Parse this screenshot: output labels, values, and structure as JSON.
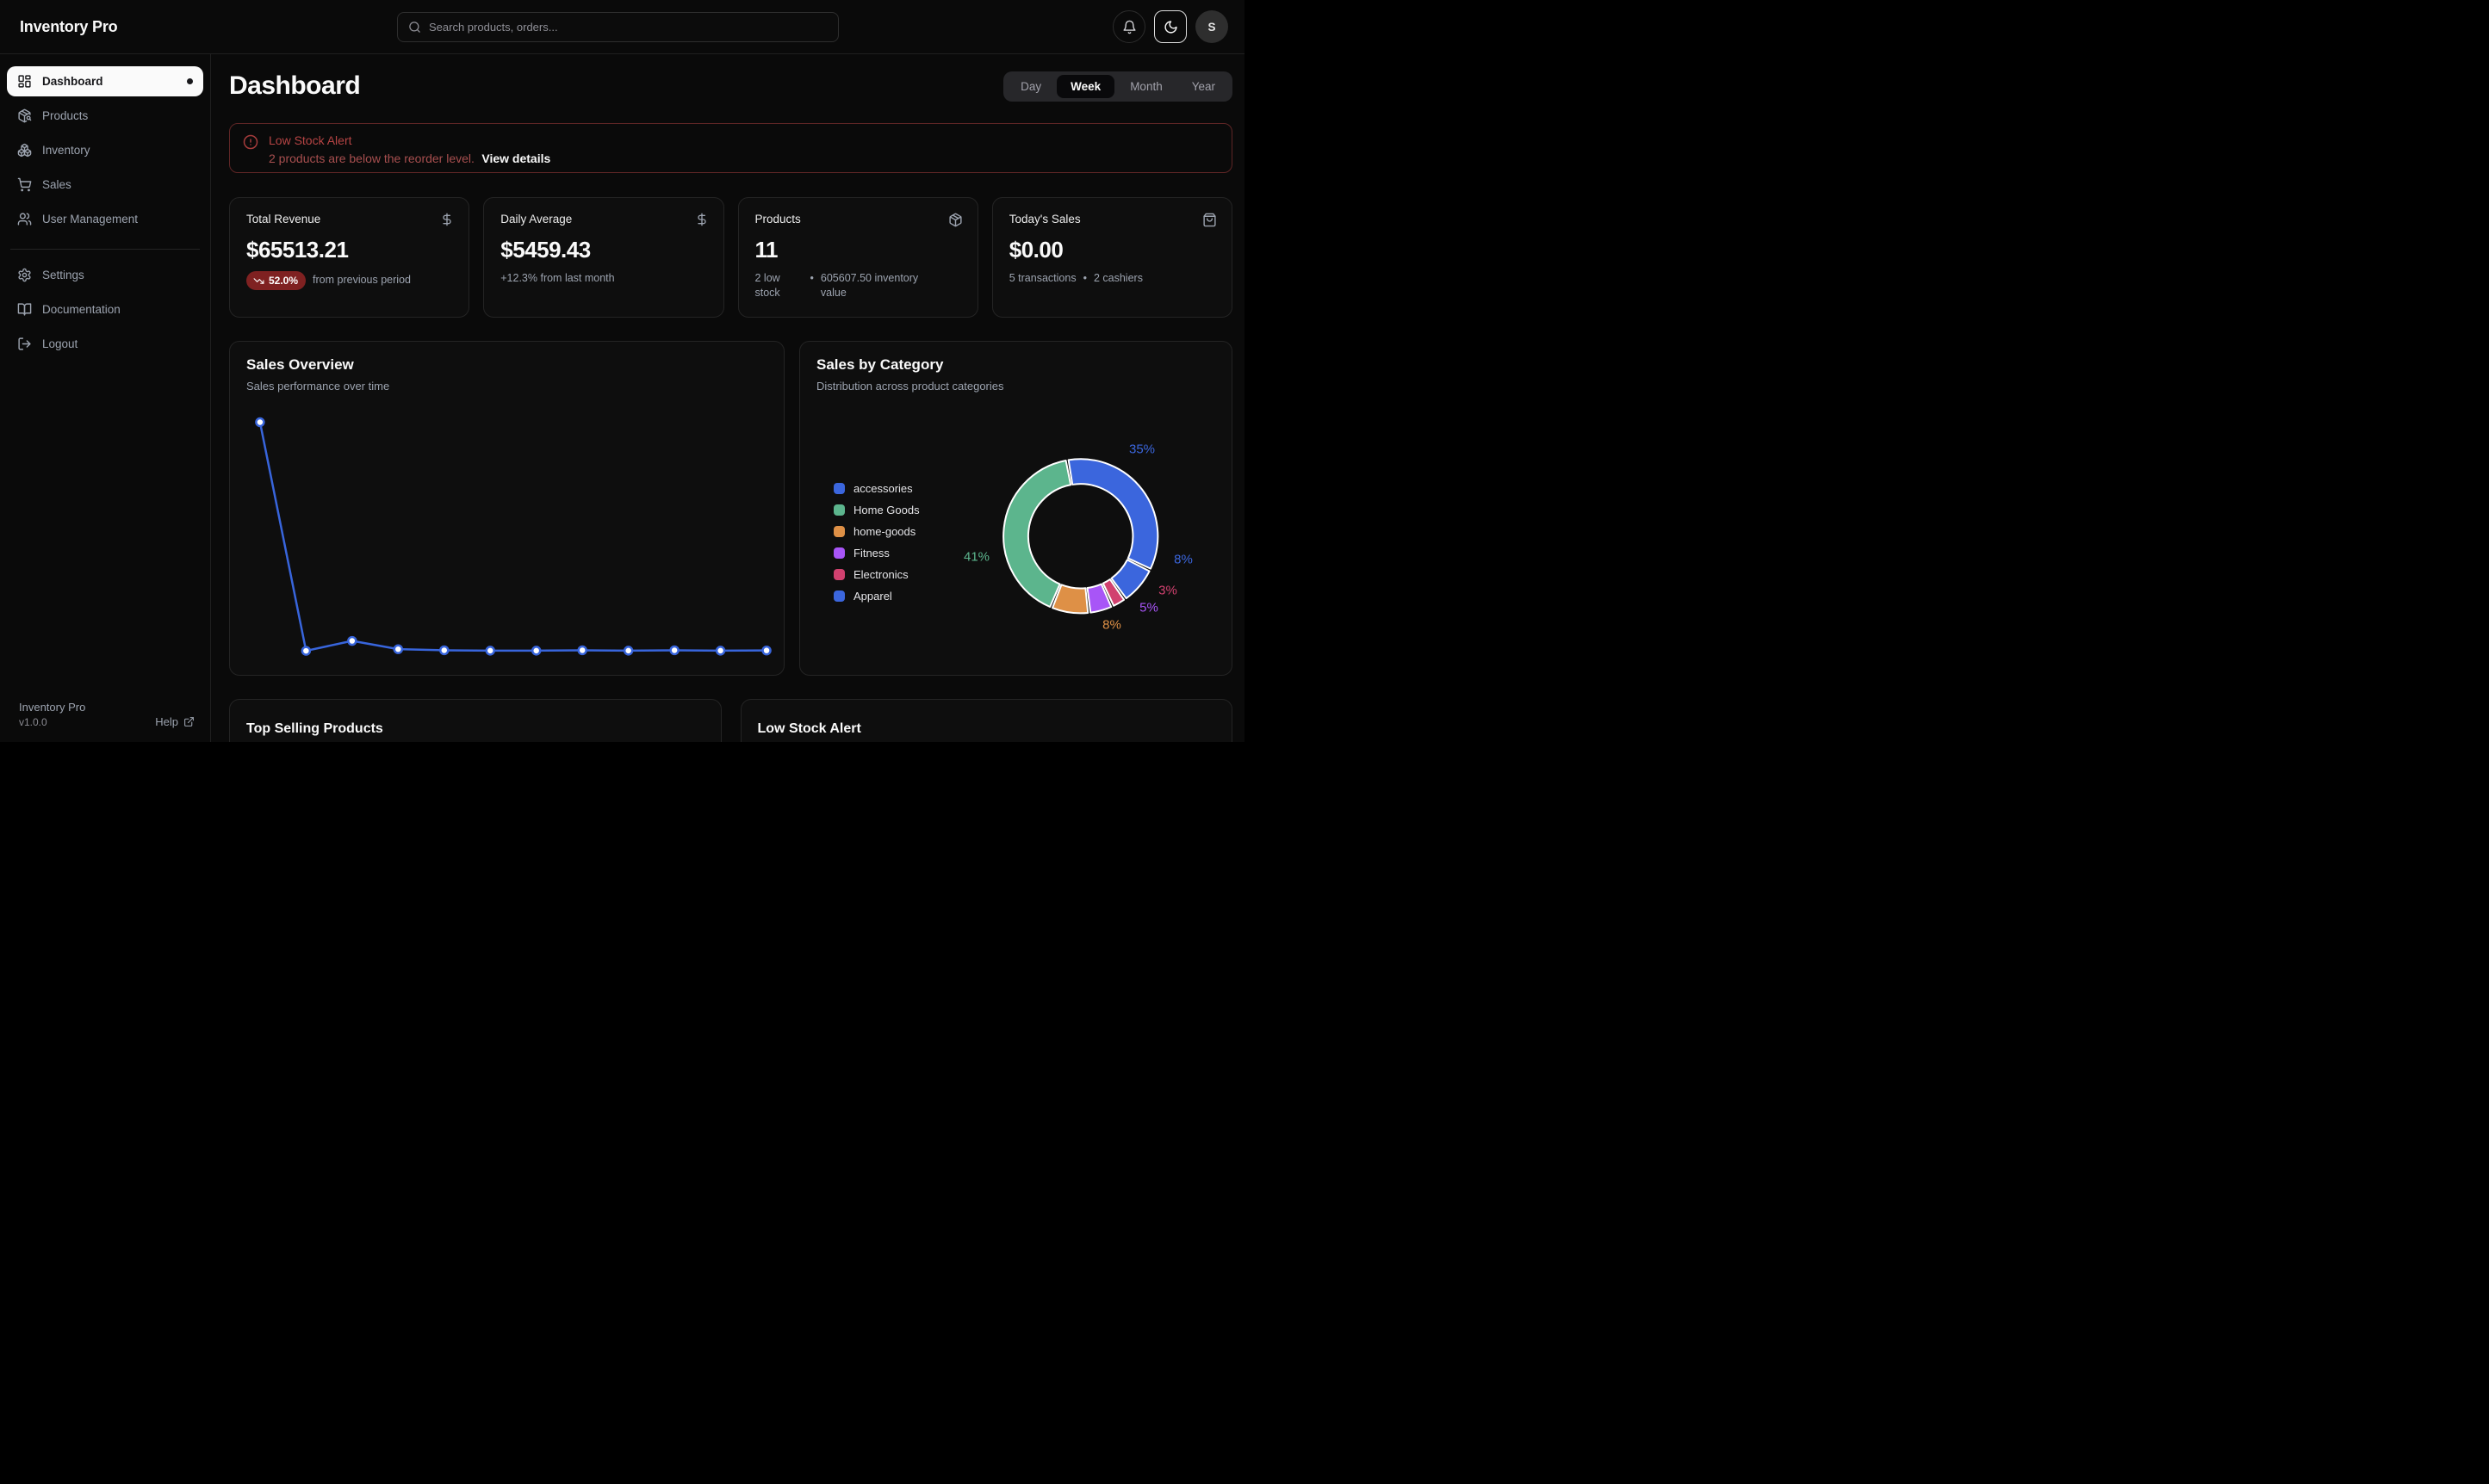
{
  "app": {
    "name": "Inventory Pro",
    "version": "v1.0.0",
    "help_label": "Help"
  },
  "header": {
    "search_placeholder": "Search products, orders...",
    "avatar_initial": "S"
  },
  "sidebar": {
    "items": [
      {
        "label": "Dashboard",
        "active": true
      },
      {
        "label": "Products"
      },
      {
        "label": "Inventory"
      },
      {
        "label": "Sales"
      },
      {
        "label": "User Management"
      }
    ],
    "secondary": [
      {
        "label": "Settings"
      },
      {
        "label": "Documentation"
      },
      {
        "label": "Logout"
      }
    ]
  },
  "page": {
    "title": "Dashboard",
    "tabs": [
      "Day",
      "Week",
      "Month",
      "Year"
    ],
    "active_tab": "Week"
  },
  "alert": {
    "title": "Low Stock Alert",
    "message": "2 products are below the reorder level.",
    "action": "View details"
  },
  "ui": {
    "dot": "•"
  },
  "stats": [
    {
      "title": "Total Revenue",
      "icon": "dollar-sign-icon",
      "value": "$65513.21",
      "badge": "52.0%",
      "badge_direction": "down",
      "note": "from previous period"
    },
    {
      "title": "Daily Average",
      "icon": "dollar-sign-icon",
      "value": "$5459.43",
      "note": "+12.3% from last month"
    },
    {
      "title": "Products",
      "icon": "package-icon",
      "value": "11",
      "note_a": "2 low stock",
      "note_b": "605607.50 inventory value"
    },
    {
      "title": "Today's Sales",
      "icon": "shopping-bag-icon",
      "value": "$0.00",
      "note_a": "5 transactions",
      "note_b": "2 cashiers"
    }
  ],
  "charts": {
    "line": {
      "title": "Sales Overview",
      "subtitle": "Sales performance over time"
    },
    "donut": {
      "title": "Sales by Category",
      "subtitle": "Distribution across product categories"
    }
  },
  "bottom": [
    {
      "title": "Top Selling Products"
    },
    {
      "title": "Low Stock Alert"
    }
  ],
  "chart_data": [
    {
      "type": "line",
      "title": "Sales Overview",
      "subtitle": "Sales performance over time",
      "color": "#3865dc",
      "axes_visible": false,
      "grid": false,
      "values_estimated": true,
      "x": [
        1,
        2,
        3,
        4,
        5,
        6,
        7,
        8,
        9,
        10,
        11,
        12
      ],
      "series": [
        {
          "name": "sales",
          "values": [
            63500,
            250,
            3000,
            700,
            400,
            300,
            300,
            400,
            300,
            400,
            300,
            350
          ]
        }
      ],
      "ylim": [
        0,
        65000
      ],
      "point_marker": "white-filled circle with blue ring"
    },
    {
      "type": "donut",
      "title": "Sales by Category",
      "subtitle": "Distribution across product categories",
      "start_angle_deg": -10,
      "clockwise": true,
      "legend_position": "left",
      "slices": [
        {
          "label": "accessories",
          "pct": 35,
          "color": "#3b66dd",
          "label_pos": [
            397,
            125
          ]
        },
        {
          "label": "Apparel",
          "pct": 8,
          "color": "#3b66dd",
          "label_pos": [
            445,
            253
          ]
        },
        {
          "label": "Electronics",
          "pct": 3,
          "color": "#d1416f",
          "label_pos": [
            427,
            289
          ]
        },
        {
          "label": "Fitness",
          "pct": 5,
          "color": "#a855f7",
          "label_pos": [
            405,
            309
          ]
        },
        {
          "label": "home-goods",
          "pct": 8,
          "color": "#de9046",
          "label_pos": [
            362,
            329
          ]
        },
        {
          "label": "Home Goods",
          "pct": 41,
          "color": "#5cb58d",
          "label_pos": [
            205,
            250
          ]
        }
      ],
      "legend": [
        {
          "label": "accessories",
          "color": "#3b66dd"
        },
        {
          "label": "Home Goods",
          "color": "#5cb58d"
        },
        {
          "label": "home-goods",
          "color": "#de9046"
        },
        {
          "label": "Fitness",
          "color": "#a855f7"
        },
        {
          "label": "Electronics",
          "color": "#d1416f"
        },
        {
          "label": "Apparel",
          "color": "#3b66dd"
        }
      ],
      "geometry": {
        "cx": 327,
        "cy": 227,
        "outer_r": 90,
        "inner_r": 61,
        "pad_deg": 2
      }
    }
  ]
}
